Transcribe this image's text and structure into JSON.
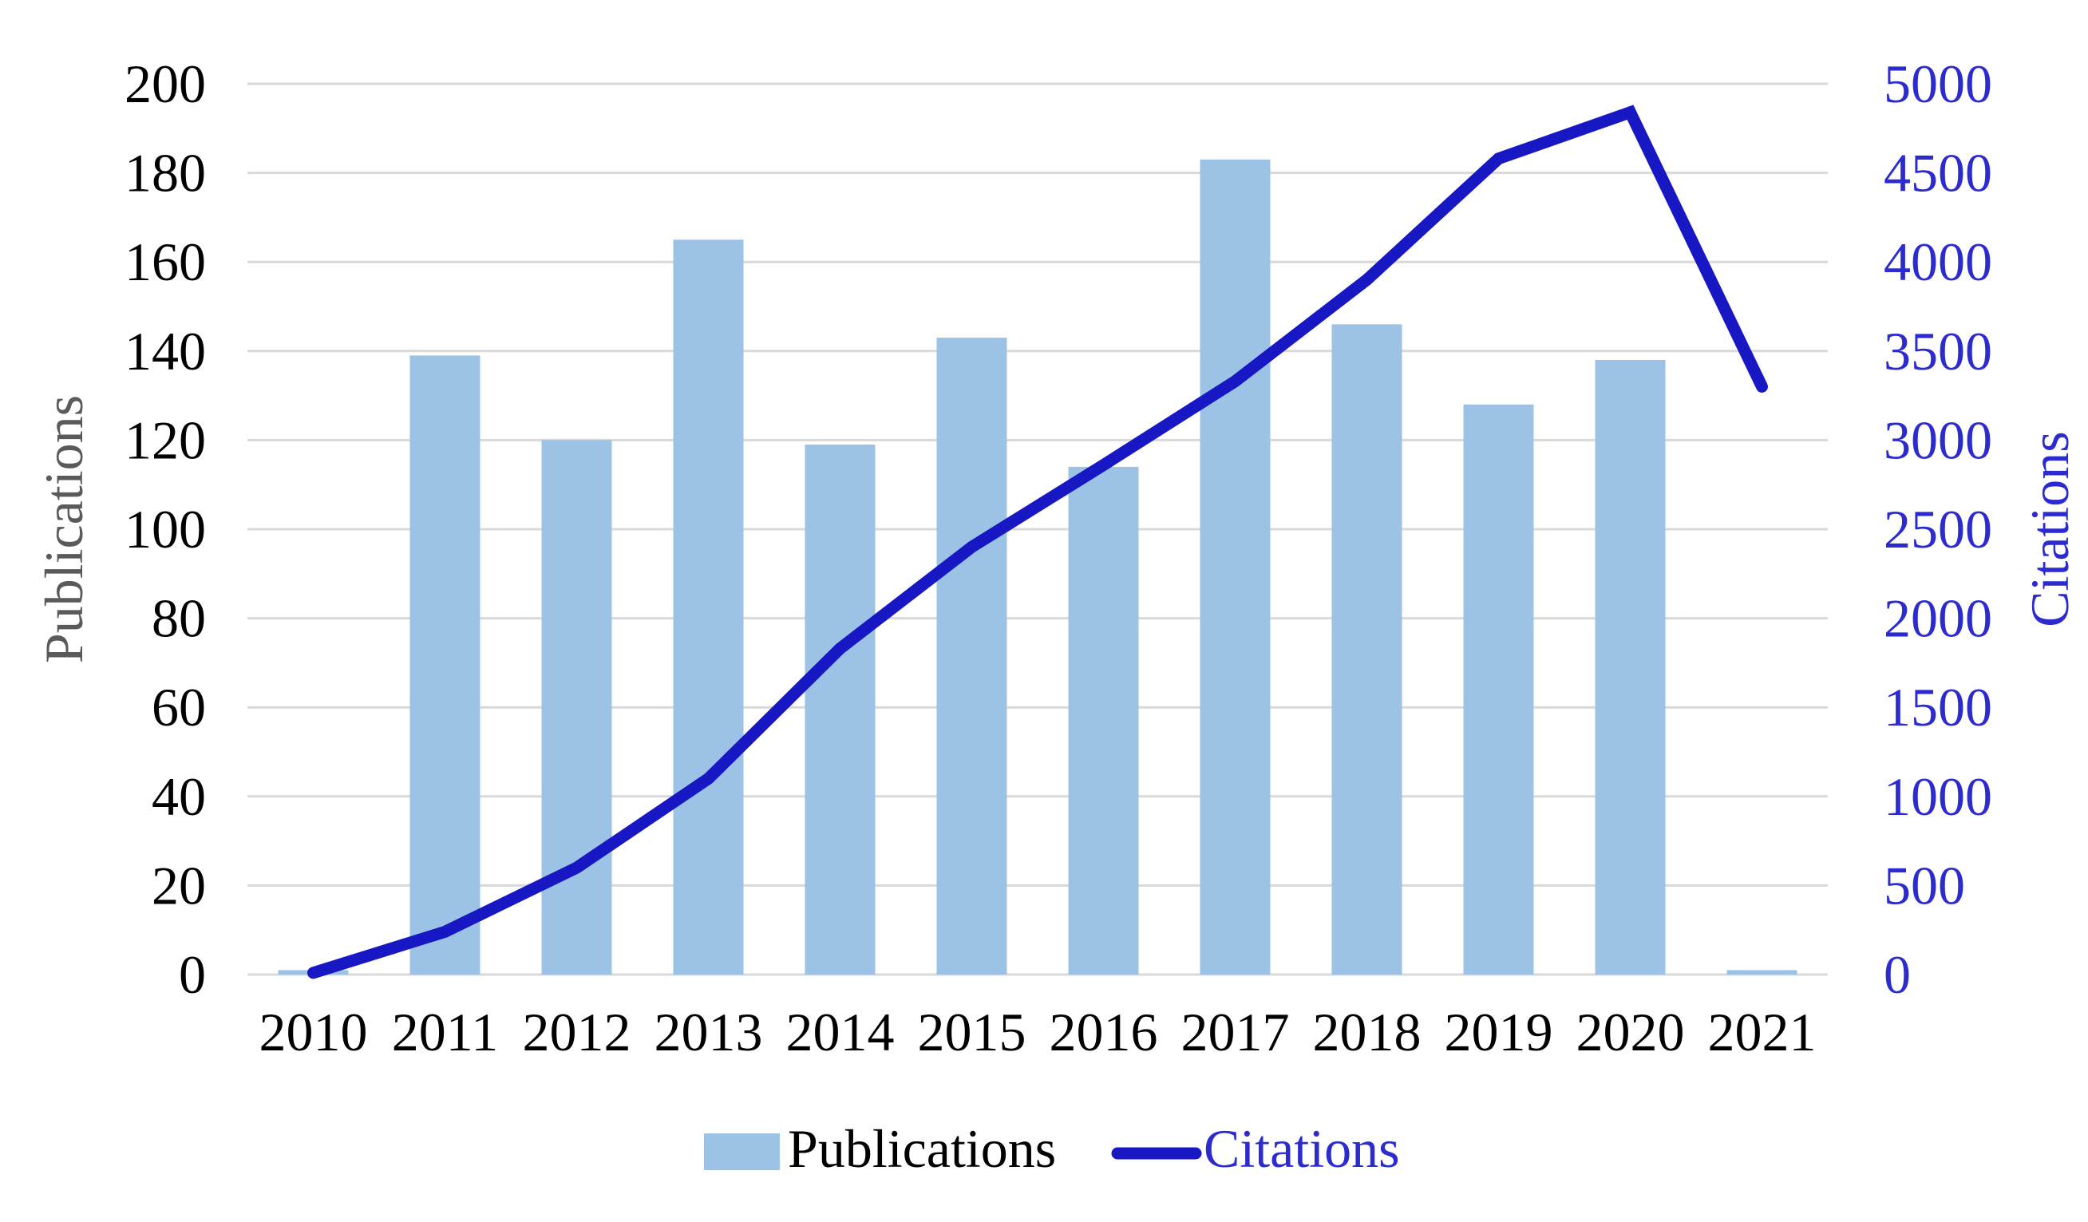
{
  "figure": {
    "description": "Combination chart of yearly Publications (bars, left axis) and Citations (line, right axis), 2010-2021"
  },
  "chart_data": {
    "type": "bar+line combo",
    "categories": [
      "2010",
      "2011",
      "2012",
      "2013",
      "2014",
      "2015",
      "2016",
      "2017",
      "2018",
      "2019",
      "2020",
      "2021"
    ],
    "series": [
      {
        "name": "Publications",
        "type": "bar",
        "axis": "left",
        "color": "#9CC3E6",
        "values": [
          1,
          139,
          120,
          165,
          119,
          143,
          114,
          183,
          146,
          128,
          138,
          1
        ]
      },
      {
        "name": "Citations",
        "type": "line",
        "axis": "right",
        "color": "#1717C4",
        "values": [
          10,
          240,
          600,
          1100,
          1830,
          2400,
          2860,
          3330,
          3900,
          4580,
          4840,
          3300
        ]
      }
    ],
    "left_axis": {
      "title": "Publications",
      "title_color": "#5A5A5A",
      "tick_color": "#000000",
      "min": 0,
      "max": 200,
      "step": 20,
      "tick_labels": [
        "0",
        "20",
        "40",
        "60",
        "80",
        "100",
        "120",
        "140",
        "160",
        "180",
        "200"
      ]
    },
    "right_axis": {
      "title": "Citations",
      "title_color": "#2B2BCF",
      "tick_color": "#2B2BCF",
      "min": 0,
      "max": 5000,
      "step": 500,
      "tick_labels": [
        "0",
        "500",
        "1000",
        "1500",
        "2000",
        "2500",
        "3000",
        "3500",
        "4000",
        "4500",
        "5000"
      ]
    },
    "x_axis": {
      "tick_color": "#000000",
      "tick_labels": [
        "2010",
        "2011",
        "2012",
        "2013",
        "2014",
        "2015",
        "2016",
        "2017",
        "2018",
        "2019",
        "2020",
        "2021"
      ]
    },
    "legend": {
      "position": "bottom",
      "entries": [
        {
          "label": "Publications",
          "marker": "square",
          "marker_color": "#9CC3E6",
          "label_color": "#000000"
        },
        {
          "label": "Citations",
          "marker": "line",
          "marker_color": "#1717C4",
          "label_color": "#2B2BCF"
        }
      ]
    },
    "grid": true,
    "gridline_color": "#D9D9D9",
    "background": "#FFFFFF"
  }
}
